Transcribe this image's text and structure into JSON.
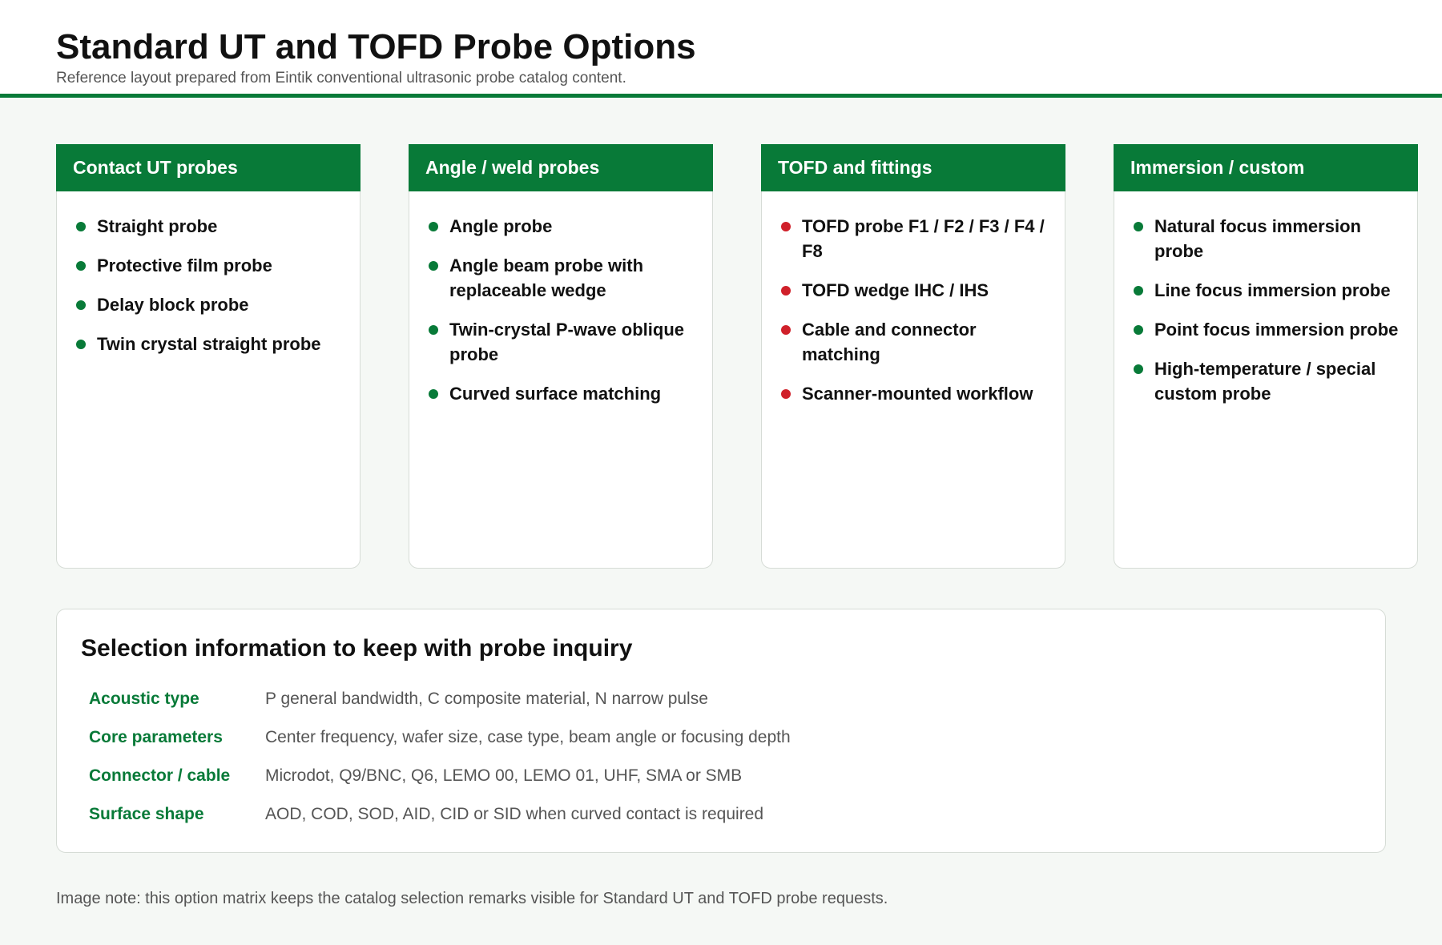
{
  "header": {
    "title": "Standard UT and TOFD Probe Options",
    "subtitle": "Reference layout prepared from Eintik conventional ultrasonic probe catalog content."
  },
  "cards": [
    {
      "title": "Contact UT probes",
      "items": [
        "Straight probe",
        "Protective film probe",
        "Delay block probe",
        "Twin crystal straight probe"
      ]
    },
    {
      "title": "Angle / weld probes",
      "items": [
        "Angle probe",
        "Angle beam probe with replaceable wedge",
        "Twin-crystal P-wave oblique probe",
        "Curved surface matching"
      ]
    },
    {
      "title": "TOFD and fittings",
      "items": [
        "TOFD probe F1 / F2 / F3 / F4 / F8",
        "TOFD wedge IHC / IHS",
        "Cable and connector matching",
        "Scanner-mounted workflow"
      ]
    },
    {
      "title": "Immersion / custom",
      "items": [
        "Natural focus immersion probe",
        "Line focus immersion probe",
        "Point focus immersion probe",
        "High-temperature / special custom probe"
      ]
    }
  ],
  "selection": {
    "title": "Selection information to keep with probe inquiry",
    "rows": [
      [
        "Acoustic type",
        "P general bandwidth, C composite material, N narrow pulse"
      ],
      [
        "Core parameters",
        "Center frequency, wafer size, case type, beam angle or focusing depth"
      ],
      [
        "Connector / cable",
        "Microdot, Q9/BNC, Q6, LEMO 00, LEMO 01, UHF, SMA or SMB"
      ],
      [
        "Surface shape",
        "AOD, COD, SOD, AID, CID or SID when curved contact is required"
      ]
    ]
  },
  "note": "Image note: this option matrix keeps the catalog selection remarks visible for Standard UT and TOFD probe requests."
}
